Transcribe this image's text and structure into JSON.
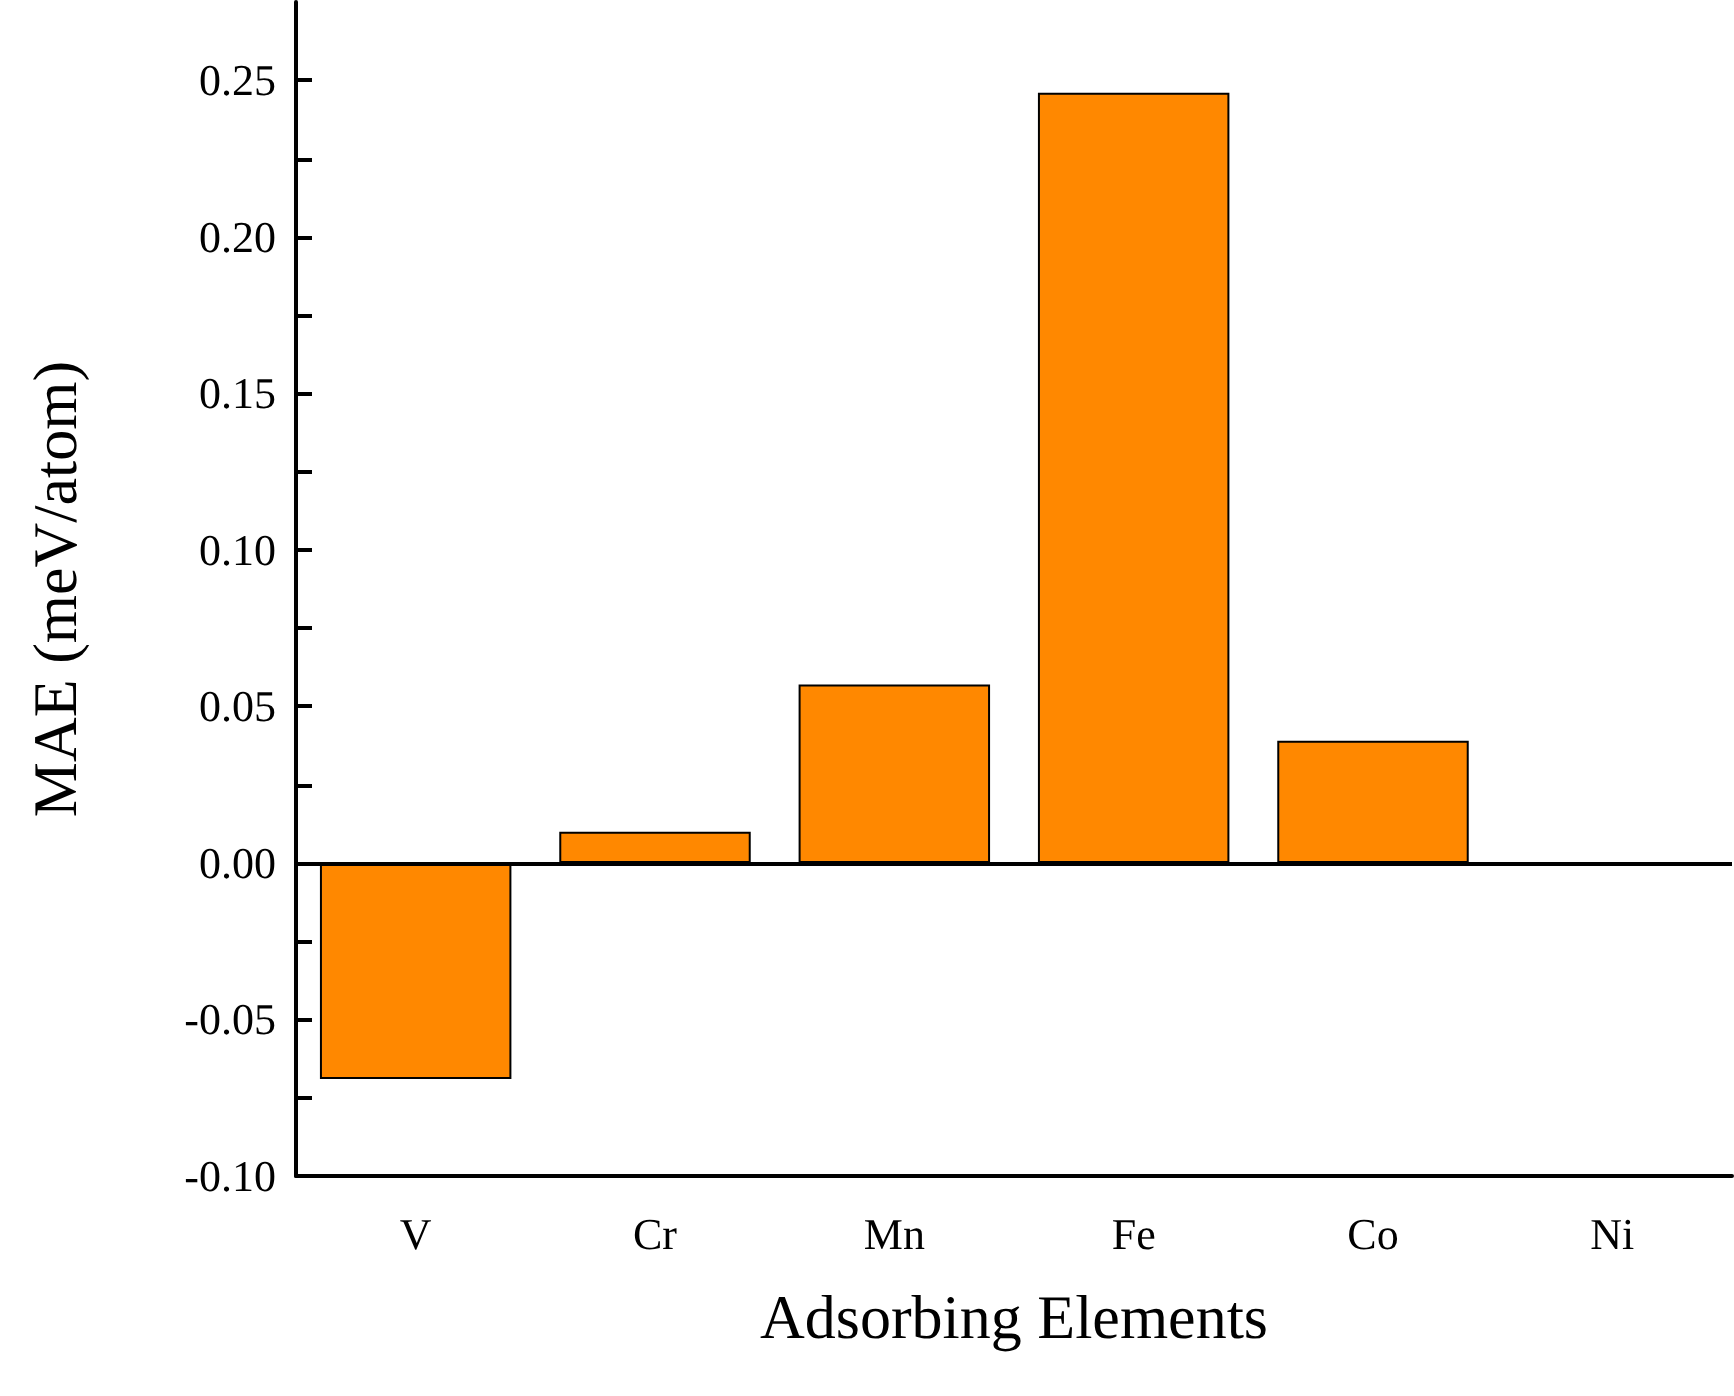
{
  "chart_data": {
    "type": "bar",
    "xlabel": "Adsorbing Elements",
    "ylabel": "MAE (meV/atom)",
    "categories": [
      "V",
      "Cr",
      "Mn",
      "Fe",
      "Co",
      "Ni"
    ],
    "values": [
      -0.069,
      0.01,
      0.057,
      0.246,
      0.039,
      null
    ],
    "color": "#ff8800",
    "ylim": [
      -0.1,
      0.275
    ],
    "yticks": [
      {
        "value": -0.1,
        "label": "-0.10"
      },
      {
        "value": -0.075,
        "label": null
      },
      {
        "value": -0.05,
        "label": "-0.05"
      },
      {
        "value": -0.025,
        "label": null
      },
      {
        "value": 0,
        "label": "0.00"
      },
      {
        "value": 0.025,
        "label": null
      },
      {
        "value": 0.05,
        "label": "0.05"
      },
      {
        "value": 0.075,
        "label": null
      },
      {
        "value": 0.1,
        "label": "0.10"
      },
      {
        "value": 0.125,
        "label": null
      },
      {
        "value": 0.15,
        "label": "0.15"
      },
      {
        "value": 0.175,
        "label": null
      },
      {
        "value": 0.2,
        "label": "0.20"
      },
      {
        "value": 0.225,
        "label": null
      },
      {
        "value": 0.25,
        "label": "0.25"
      }
    ],
    "ref_lines": [
      {
        "axis": "y",
        "value": 0,
        "color": "#000000"
      }
    ],
    "grid": false
  }
}
